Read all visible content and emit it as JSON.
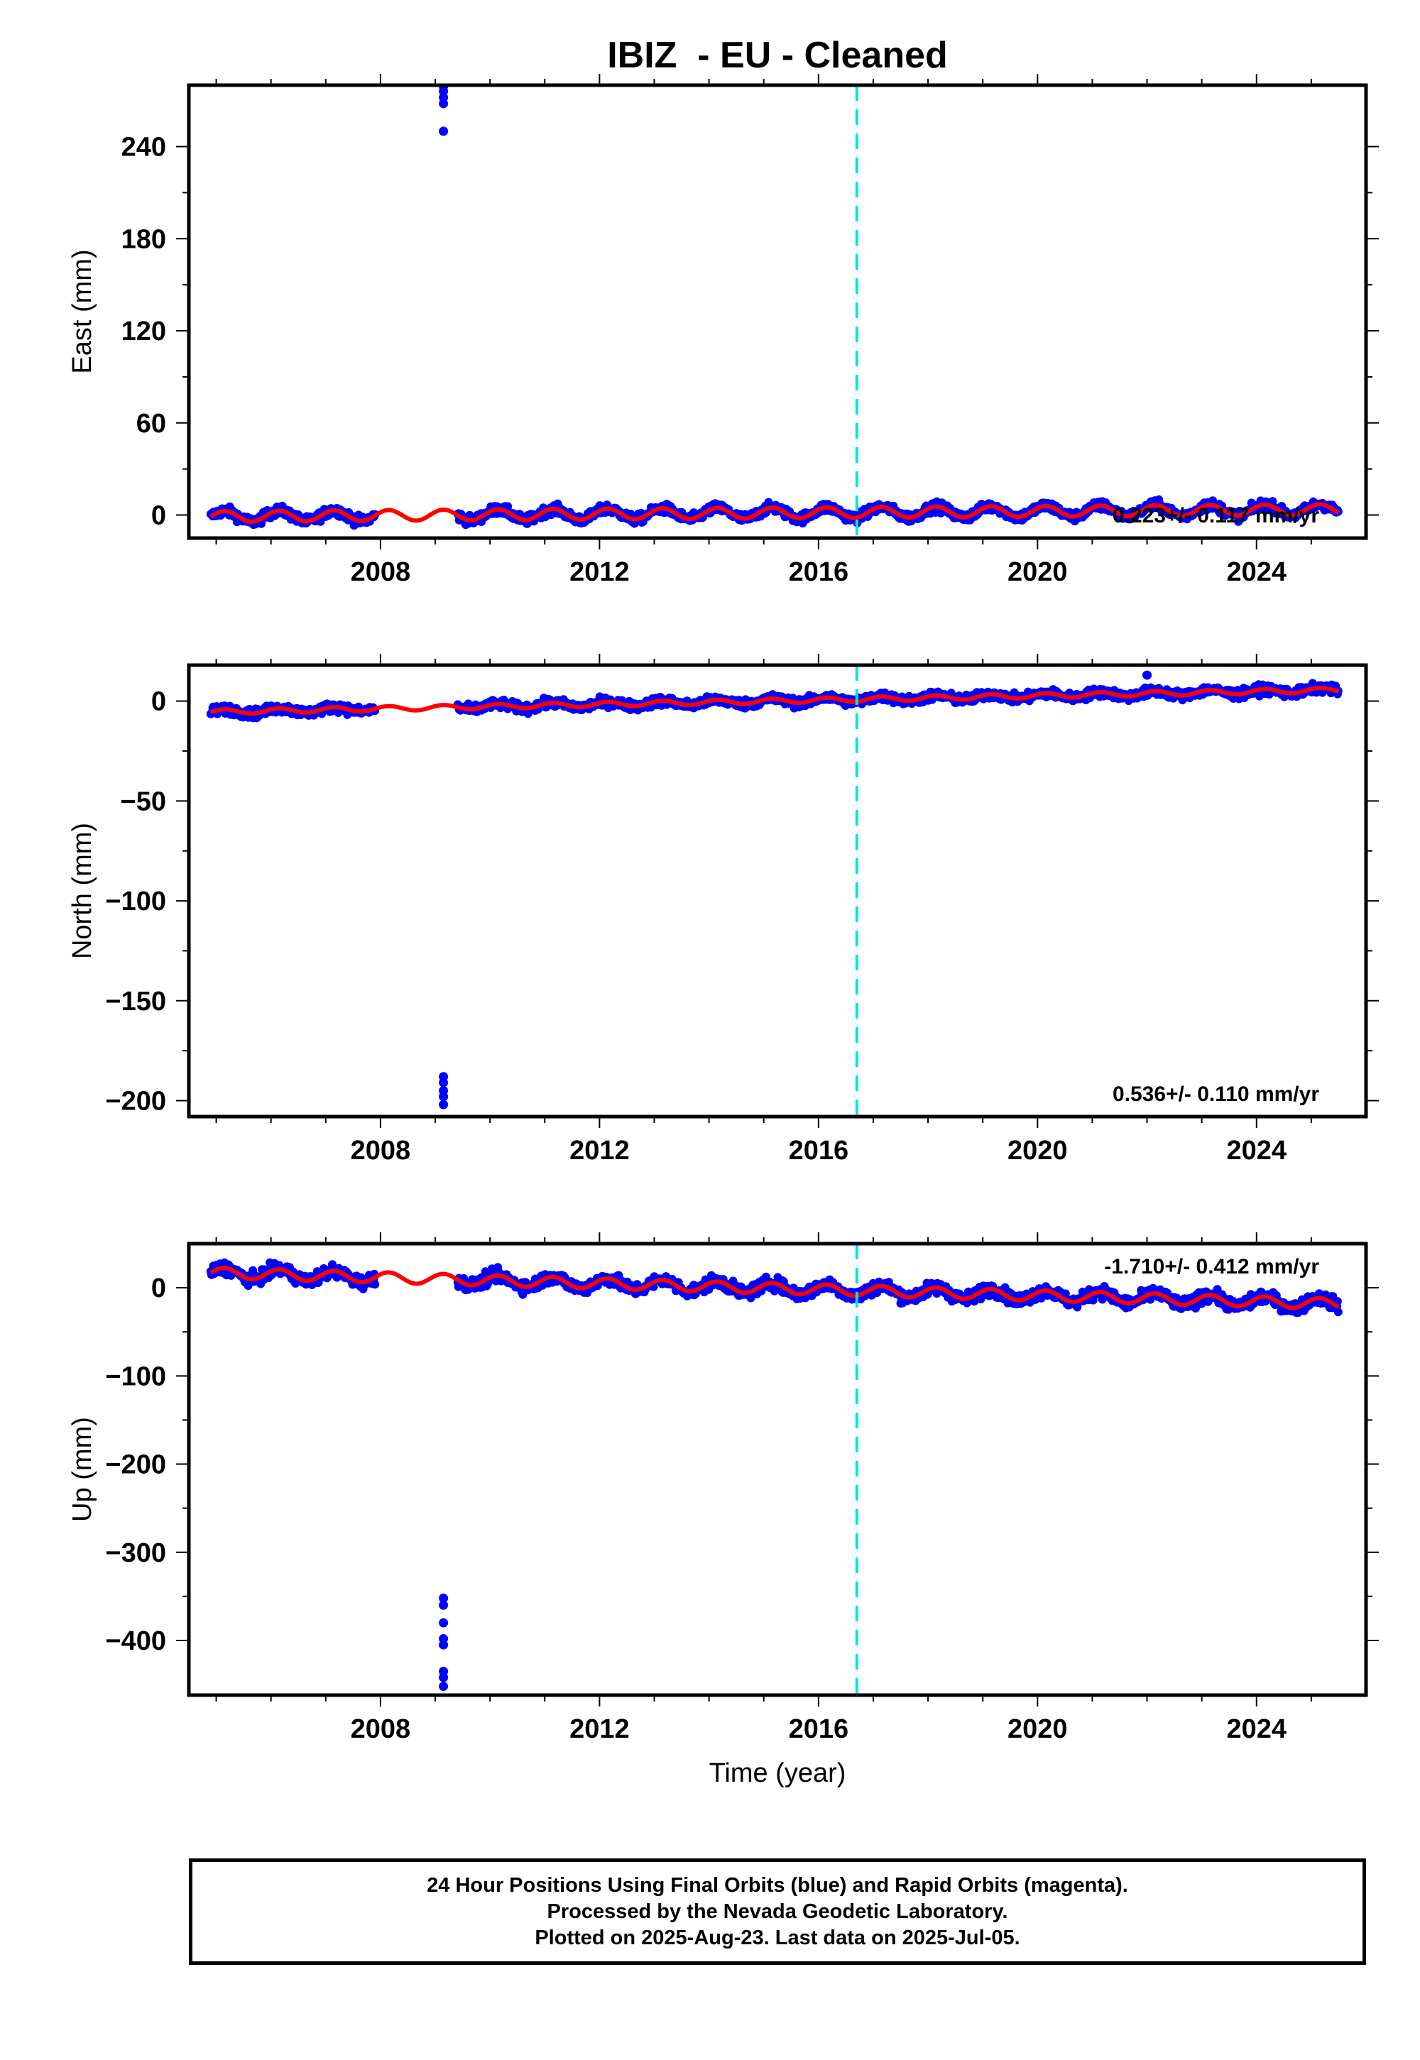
{
  "title": "IBIZ  - EU - Cleaned",
  "colors": {
    "data": "#0000ff",
    "model": "#ff0000",
    "event_line": "#00e5ee",
    "axis": "#000000"
  },
  "footer": {
    "line1": "24 Hour Positions Using Final Orbits (blue) and Rapid Orbits (magenta).",
    "line2": "Processed by the Nevada Geodetic Laboratory.",
    "line3": "Plotted on 2025-Aug-23. Last data on 2025-Jul-05."
  },
  "chart_data": [
    {
      "type": "scatter",
      "component": "East",
      "ylabel": "East (mm)",
      "xlabel": "",
      "xlim": [
        2004.5,
        2026.0
      ],
      "ylim": [
        -15,
        280
      ],
      "yticks": [
        0,
        60,
        120,
        180,
        240
      ],
      "ytick_labels": [
        "0",
        "60",
        "120",
        "180",
        "240"
      ],
      "xticks": [
        2008,
        2012,
        2016,
        2020,
        2024
      ],
      "xtick_labels": [
        "2008",
        "2012",
        "2016",
        "2020",
        "2024"
      ],
      "grid": false,
      "rate_label": "0.223+/- 0.117 mm/yr",
      "rate_label_position": "bottom-right",
      "event_line_year": 2016.7,
      "data_span": [
        2004.9,
        2025.5
      ],
      "data_gap": [
        2007.9,
        2009.4
      ],
      "model": {
        "offset_2016": 1.5,
        "rate": 0.223,
        "annual_amplitude": 3.5,
        "scatter": 2.2
      },
      "outliers": [
        {
          "x": 2009.15,
          "y": 250
        },
        {
          "x": 2009.15,
          "y": 268
        },
        {
          "x": 2009.15,
          "y": 272
        },
        {
          "x": 2009.15,
          "y": 276
        },
        {
          "x": 2009.15,
          "y": 279
        }
      ]
    },
    {
      "type": "scatter",
      "component": "North",
      "ylabel": "North (mm)",
      "xlabel": "",
      "xlim": [
        2004.5,
        2026.0
      ],
      "ylim": [
        -208,
        18
      ],
      "yticks": [
        -200,
        -150,
        -100,
        -50,
        0
      ],
      "ytick_labels": [
        "−200",
        "−150",
        "−100",
        "−50",
        "0"
      ],
      "xticks": [
        2008,
        2012,
        2016,
        2020,
        2024
      ],
      "xtick_labels": [
        "2008",
        "2012",
        "2016",
        "2020",
        "2024"
      ],
      "grid": false,
      "rate_label": "0.536+/- 0.110 mm/yr",
      "rate_label_position": "bottom-right",
      "event_line_year": 2016.7,
      "data_span": [
        2004.9,
        2025.5
      ],
      "data_gap": [
        2007.9,
        2009.4
      ],
      "model": {
        "offset_2016": 0.5,
        "rate": 0.536,
        "annual_amplitude": 1.2,
        "scatter": 1.6
      },
      "outliers": [
        {
          "x": 2009.15,
          "y": -188
        },
        {
          "x": 2009.15,
          "y": -191
        },
        {
          "x": 2009.15,
          "y": -195
        },
        {
          "x": 2009.15,
          "y": -198
        },
        {
          "x": 2009.15,
          "y": -202
        },
        {
          "x": 2022.0,
          "y": 13
        }
      ]
    },
    {
      "type": "scatter",
      "component": "Up",
      "ylabel": "Up (mm)",
      "xlabel": "Time (year)",
      "xlim": [
        2004.5,
        2026.0
      ],
      "ylim": [
        -462,
        50
      ],
      "yticks": [
        -400,
        -300,
        -200,
        -100,
        0
      ],
      "ytick_labels": [
        "−400",
        "−300",
        "−200",
        "−100",
        "0"
      ],
      "xticks": [
        2008,
        2012,
        2016,
        2020,
        2024
      ],
      "xtick_labels": [
        "2008",
        "2012",
        "2016",
        "2020",
        "2024"
      ],
      "grid": false,
      "rate_label": "-1.710+/- 0.412 mm/yr",
      "rate_label_position": "top-right",
      "event_line_year": 2016.7,
      "data_span": [
        2004.9,
        2025.5
      ],
      "data_gap": [
        2007.9,
        2009.4
      ],
      "model": {
        "offset_2016": -2,
        "rate": -1.71,
        "annual_amplitude": 6,
        "scatter": 5
      },
      "outliers": [
        {
          "x": 2009.15,
          "y": -352
        },
        {
          "x": 2009.15,
          "y": -360
        },
        {
          "x": 2009.15,
          "y": -380
        },
        {
          "x": 2009.15,
          "y": -398
        },
        {
          "x": 2009.15,
          "y": -405
        },
        {
          "x": 2009.15,
          "y": -435
        },
        {
          "x": 2009.15,
          "y": -442
        },
        {
          "x": 2009.15,
          "y": -452
        }
      ]
    }
  ]
}
